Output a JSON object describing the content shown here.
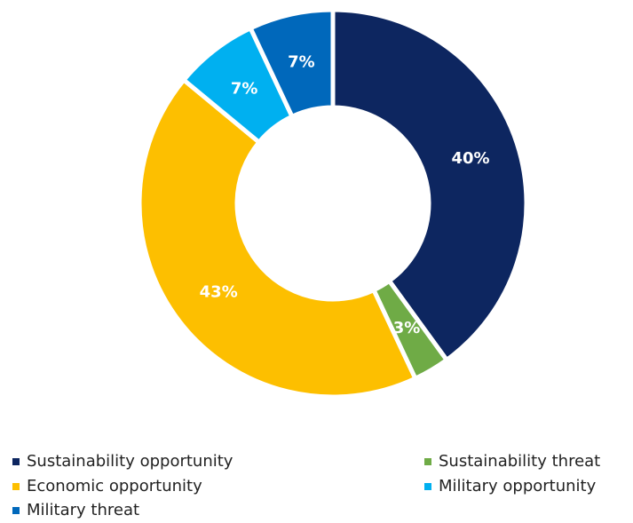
{
  "chart_data": {
    "type": "pie",
    "variant": "donut",
    "title": "",
    "slices": [
      {
        "label": "Sustainability opportunity",
        "value": 40,
        "display": "40%",
        "color": "#0d2660"
      },
      {
        "label": "Sustainability threat",
        "value": 3,
        "display": "3%",
        "color": "#6fab46"
      },
      {
        "label": "Economic opportunity",
        "value": 43,
        "display": "43%",
        "color": "#fdbf00"
      },
      {
        "label": "Military opportunity",
        "value": 7,
        "display": "7%",
        "color": "#00b0f0"
      },
      {
        "label": "Military threat",
        "value": 7,
        "display": "7%",
        "color": "#0068bb"
      }
    ],
    "legend_position": "bottom",
    "start_angle": "12 o'clock",
    "direction": "clockwise"
  }
}
